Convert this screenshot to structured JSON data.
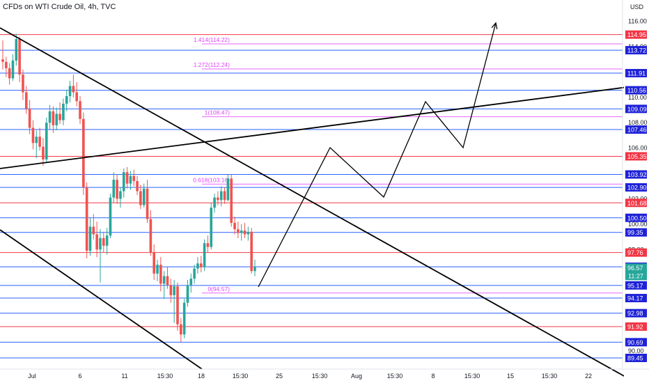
{
  "header": {
    "title": "CFDs on WTI Crude Oil, 4h, TVC",
    "currency": "USD"
  },
  "colors": {
    "red_line": "#f23645",
    "blue_line": "#2962ff",
    "fib": "#e040fb",
    "up": "#26a69a",
    "down": "#ef5350",
    "trend": "#000000",
    "badge_red": "#f23645",
    "badge_blue": "#1e22d7",
    "price_badge": "#26a69a",
    "axis_bg": "#ffffff"
  },
  "chart_data": {
    "type": "candlestick",
    "ylim": [
      88.9,
      116.8
    ],
    "y_ticks": [
      "116.00",
      "114.00",
      "112.00",
      "110.00",
      "108.00",
      "106.00",
      "104.00",
      "102.00",
      "100.00",
      "98.00",
      "96.00",
      "92.00",
      "90.00"
    ],
    "x_ticks": [
      "Jul",
      "6",
      "11",
      "15:30",
      "18",
      "15:30",
      "25",
      "15:30",
      "Aug",
      "15:30",
      "8",
      "15:30",
      "15",
      "15:30",
      "22"
    ],
    "levels": [
      {
        "value": 114.95,
        "label": "114.95",
        "color": "red"
      },
      {
        "value": 113.72,
        "label": "113.72",
        "color": "blue"
      },
      {
        "value": 111.91,
        "label": "111.91",
        "color": "blue"
      },
      {
        "value": 110.56,
        "label": "110.56",
        "color": "blue"
      },
      {
        "value": 109.09,
        "label": "109.09",
        "color": "blue"
      },
      {
        "value": 107.46,
        "label": "107.46",
        "color": "blue"
      },
      {
        "value": 105.35,
        "label": "105.35",
        "color": "red"
      },
      {
        "value": 103.92,
        "label": "103.92",
        "color": "blue"
      },
      {
        "value": 102.9,
        "label": "102.90",
        "color": "blue"
      },
      {
        "value": 101.68,
        "label": "101.68",
        "color": "red"
      },
      {
        "value": 100.5,
        "label": "100.50",
        "color": "blue"
      },
      {
        "value": 99.35,
        "label": "99.35",
        "color": "blue"
      },
      {
        "value": 97.76,
        "label": "97.76",
        "color": "red"
      },
      {
        "value": 96.64,
        "label": "96.64",
        "color": "blue"
      },
      {
        "value": 95.17,
        "label": "95.17",
        "color": "blue"
      },
      {
        "value": 94.17,
        "label": "94.17",
        "color": "blue"
      },
      {
        "value": 92.98,
        "label": "92.98",
        "color": "blue"
      },
      {
        "value": 91.92,
        "label": "91.92",
        "color": "red"
      },
      {
        "value": 90.69,
        "label": "90.69",
        "color": "blue"
      },
      {
        "value": 89.45,
        "label": "89.45",
        "color": "blue"
      }
    ],
    "current_price": {
      "value": 96.57,
      "label": "96.57",
      "countdown": "11:27"
    },
    "fib_levels": [
      {
        "value": 114.22,
        "label": "1.414(114.22)"
      },
      {
        "value": 112.24,
        "label": "1.272(112.24)"
      },
      {
        "value": 108.47,
        "label": "1(108.47)"
      },
      {
        "value": 103.16,
        "label": "0.618(103.16)"
      },
      {
        "value": 94.57,
        "label": "0(94.57)"
      }
    ],
    "candles": [
      [
        113,
        114.5,
        112.2,
        112.8
      ],
      [
        112.8,
        113.2,
        111.6,
        112.3
      ],
      [
        112.3,
        112.7,
        111.0,
        111.5
      ],
      [
        111.5,
        113.4,
        111.3,
        112.9
      ],
      [
        112.9,
        115.0,
        112.5,
        114.6
      ],
      [
        114.6,
        114.8,
        111.2,
        111.8
      ],
      [
        111.8,
        112.2,
        109.8,
        110.4
      ],
      [
        110.4,
        110.9,
        108.7,
        109.1
      ],
      [
        109.1,
        109.8,
        107.1,
        107.6
      ],
      [
        107.6,
        108.2,
        105.9,
        106.4
      ],
      [
        106.4,
        107.4,
        105.2,
        106.9
      ],
      [
        106.9,
        107.6,
        105.8,
        106.1
      ],
      [
        106.1,
        106.8,
        104.6,
        105.1
      ],
      [
        105.1,
        108.4,
        104.9,
        108.0
      ],
      [
        108.0,
        109.4,
        107.5,
        108.9
      ],
      [
        108.9,
        109.3,
        107.2,
        107.8
      ],
      [
        107.8,
        109.2,
        107.4,
        108.7
      ],
      [
        108.7,
        109.6,
        107.9,
        108.2
      ],
      [
        108.2,
        109.9,
        107.8,
        109.5
      ],
      [
        109.5,
        110.6,
        108.9,
        110.1
      ],
      [
        110.1,
        111.3,
        109.6,
        110.9
      ],
      [
        110.9,
        111.8,
        110.0,
        110.4
      ],
      [
        110.4,
        111.2,
        109.3,
        109.7
      ],
      [
        109.7,
        110.1,
        107.9,
        108.3
      ],
      [
        108.3,
        108.8,
        102.3,
        102.9
      ],
      [
        102.9,
        103.3,
        97.3,
        97.9
      ],
      [
        97.9,
        100.5,
        97.5,
        99.8
      ],
      [
        99.8,
        100.8,
        98.8,
        99.2
      ],
      [
        99.2,
        100.2,
        97.4,
        98.0
      ],
      [
        98.0,
        99.6,
        95.4,
        98.9
      ],
      [
        98.9,
        99.4,
        97.8,
        98.3
      ],
      [
        98.3,
        99.7,
        97.6,
        99.1
      ],
      [
        99.1,
        102.4,
        98.9,
        102.1
      ],
      [
        102.1,
        104.1,
        101.7,
        103.5
      ],
      [
        103.5,
        103.9,
        101.6,
        102.0
      ],
      [
        102.0,
        102.9,
        101.3,
        102.6
      ],
      [
        102.6,
        104.4,
        102.1,
        104.1
      ],
      [
        104.1,
        104.5,
        102.8,
        103.2
      ],
      [
        103.2,
        104.2,
        102.7,
        103.8
      ],
      [
        103.8,
        104.3,
        103.0,
        103.4
      ],
      [
        103.4,
        103.8,
        102.3,
        102.6
      ],
      [
        102.6,
        103.1,
        101.2,
        101.5
      ],
      [
        101.5,
        103.2,
        101.3,
        102.8
      ],
      [
        102.8,
        103.5,
        100.1,
        100.4
      ],
      [
        100.4,
        101.1,
        97.5,
        97.8
      ],
      [
        97.8,
        98.4,
        95.6,
        96.1
      ],
      [
        96.1,
        97.2,
        95.5,
        96.8
      ],
      [
        96.8,
        97.4,
        94.7,
        95.3
      ],
      [
        95.3,
        96.3,
        94.1,
        95.9
      ],
      [
        95.9,
        96.6,
        94.9,
        95.2
      ],
      [
        95.2,
        95.7,
        93.8,
        94.4
      ],
      [
        94.4,
        95.6,
        92.2,
        95.1
      ],
      [
        95.1,
        95.4,
        91.6,
        92.1
      ],
      [
        92.1,
        92.6,
        90.7,
        91.3
      ],
      [
        91.3,
        94.1,
        91.0,
        93.8
      ],
      [
        93.8,
        95.6,
        93.5,
        95.2
      ],
      [
        95.2,
        96.1,
        94.6,
        95.7
      ],
      [
        95.7,
        96.8,
        95.3,
        96.5
      ],
      [
        96.5,
        97.4,
        96.1,
        96.9
      ],
      [
        96.9,
        97.5,
        96.2,
        96.6
      ],
      [
        96.6,
        98.8,
        96.3,
        98.5
      ],
      [
        98.5,
        99.1,
        97.8,
        98.2
      ],
      [
        98.2,
        101.7,
        98.0,
        101.3
      ],
      [
        101.3,
        102.4,
        100.9,
        102.1
      ],
      [
        102.1,
        102.6,
        101.5,
        101.9
      ],
      [
        101.9,
        103.0,
        101.4,
        102.6
      ],
      [
        102.6,
        102.9,
        101.6,
        101.9
      ],
      [
        101.9,
        103.9,
        101.8,
        103.6
      ],
      [
        103.6,
        103.9,
        99.8,
        100.1
      ],
      [
        100.1,
        100.6,
        99.2,
        99.6
      ],
      [
        99.6,
        100.2,
        98.9,
        99.3
      ],
      [
        99.3,
        100.0,
        98.7,
        99.5
      ],
      [
        99.5,
        100.1,
        98.9,
        99.2
      ],
      [
        99.2,
        99.8,
        98.7,
        99.4
      ],
      [
        99.4,
        99.7,
        96.1,
        96.3
      ],
      [
        96.3,
        97.2,
        95.9,
        96.6
      ]
    ],
    "projection_path": [
      [
        371,
        412
      ],
      [
        474,
        212
      ],
      [
        551,
        283
      ],
      [
        611,
        146
      ],
      [
        665,
        212
      ],
      [
        712,
        33
      ]
    ],
    "trend_lines": [
      {
        "from": [
          0,
          40
        ],
        "to": [
          932,
          560
        ]
      },
      {
        "from": [
          0,
          242
        ],
        "to": [
          932,
          121
        ]
      },
      {
        "from": [
          0,
          330
        ],
        "to": [
          290,
          530
        ]
      }
    ]
  }
}
